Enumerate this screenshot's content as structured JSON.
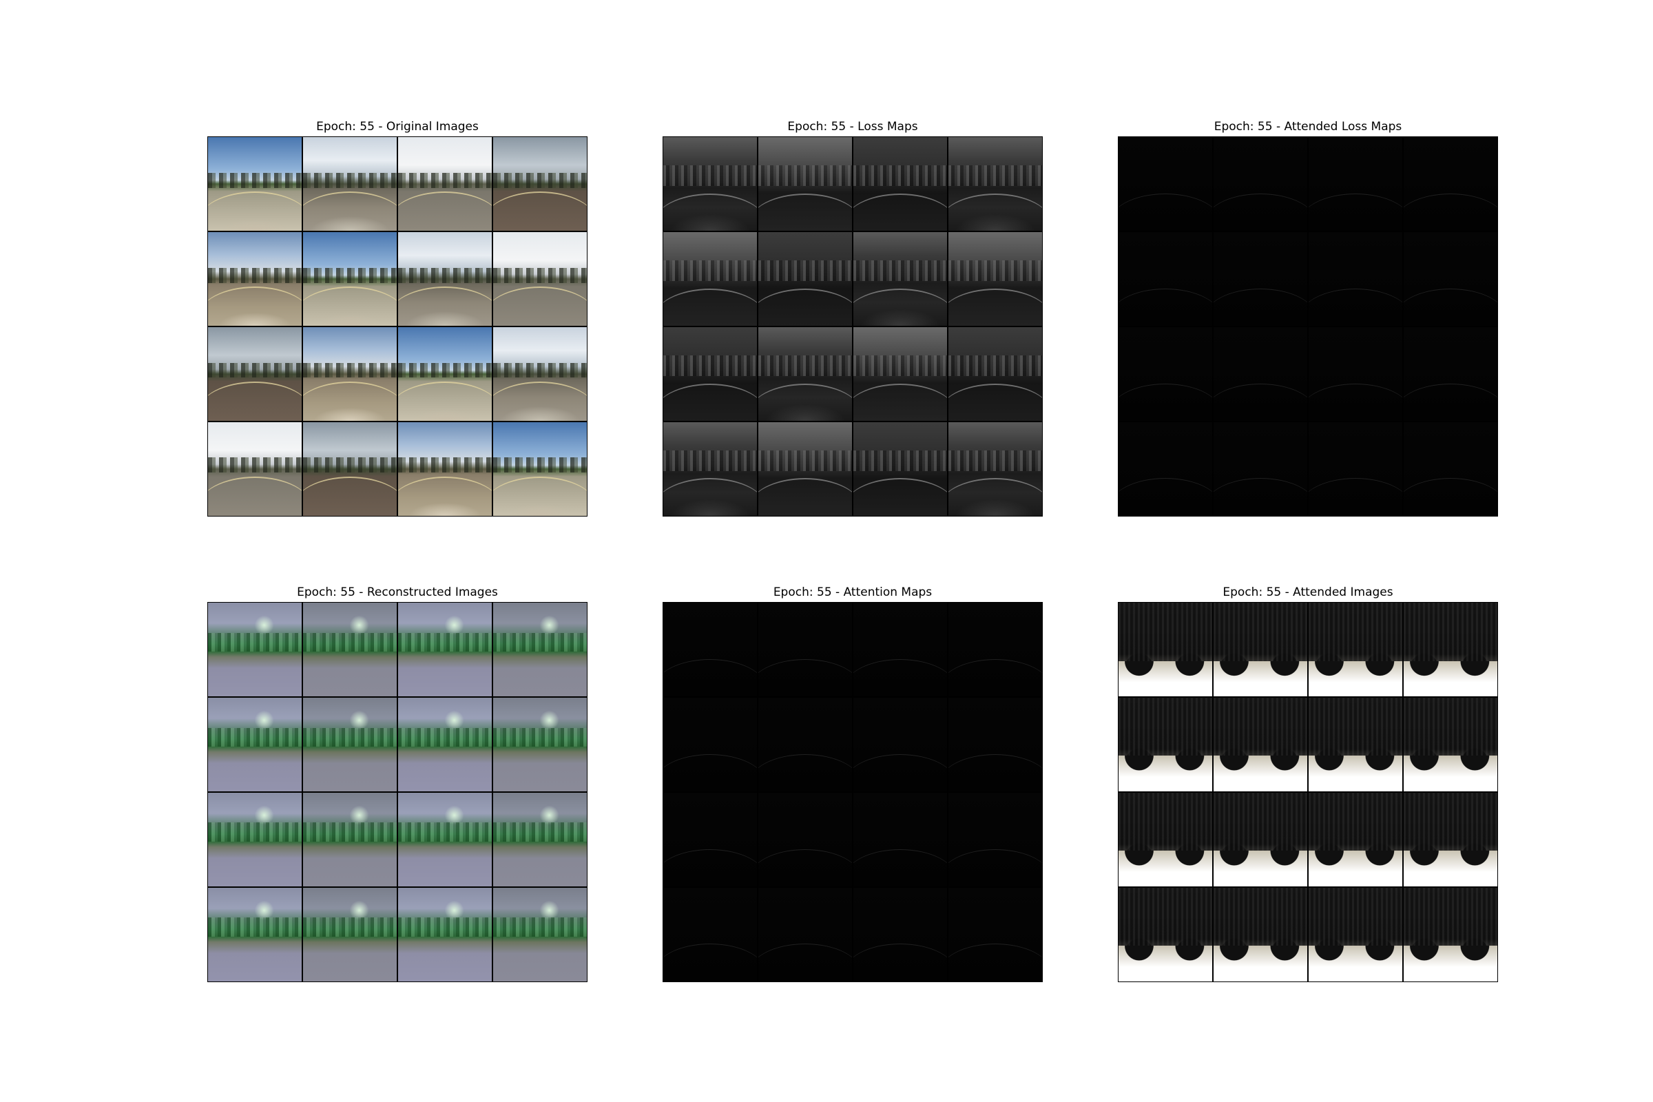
{
  "panels": [
    {
      "title": "Epoch: 55 - Original Images",
      "kind": "orig"
    },
    {
      "title": "Epoch: 55 - Loss Maps",
      "kind": "loss"
    },
    {
      "title": "Epoch: 55 - Attended Loss Maps",
      "kind": "dark"
    },
    {
      "title": "Epoch: 55 - Reconstructed Images",
      "kind": "recon"
    },
    {
      "title": "Epoch: 55 - Attention Maps",
      "kind": "dark"
    },
    {
      "title": "Epoch: 55 - Attended Images",
      "kind": "att"
    }
  ],
  "grid": {
    "rows": 4,
    "cols": 4
  }
}
